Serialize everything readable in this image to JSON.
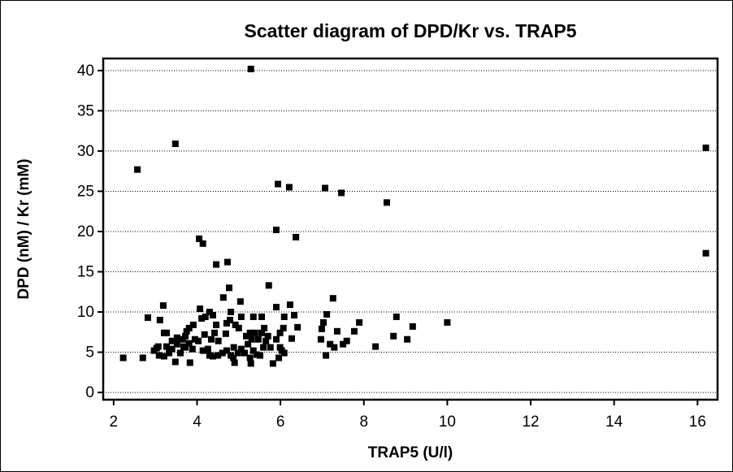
{
  "chart_data": {
    "type": "scatter",
    "title": "Scatter diagram of DPD/Kr vs. TRAP5",
    "x_label": "TRAP5 (U/l)",
    "y_label": "DPD (nM) / Kr (mM)",
    "color": "#000000",
    "grid": true,
    "xlim": [
      1.75,
      16.48
    ],
    "xticks": [
      2,
      4,
      6,
      8,
      10,
      12,
      14,
      16
    ],
    "ylim": [
      -0.9,
      41.5
    ],
    "yticks": [
      0,
      5,
      10,
      15,
      20,
      25,
      30,
      35,
      40
    ],
    "x": [
      2.23,
      2.7,
      2.82,
      2.57,
      3.48,
      5.29,
      16.2,
      16.2,
      5.94,
      6.21,
      7.07,
      7.46,
      8.55,
      5.9,
      6.37,
      4.05,
      4.14,
      4.46,
      4.73,
      5.72,
      4.77,
      4.63,
      6.23,
      7.26,
      3.19,
      4.07,
      4.3,
      5.04,
      5.9,
      6.33,
      7.11,
      8.78,
      9.17,
      10.0,
      7.03,
      6.99,
      6.97,
      7.36,
      7.19,
      7.29,
      7.5,
      7.59,
      7.77,
      7.89,
      8.28,
      8.71,
      9.04,
      7.09,
      6.09,
      6.07,
      5.99,
      5.9,
      5.99,
      6.03,
      6.09,
      5.96,
      5.82,
      6.27,
      6.41,
      5.55,
      5.35,
      5.06,
      4.92,
      5.0,
      4.79,
      4.81,
      4.71,
      4.38,
      4.11,
      4.2,
      3.91,
      3.81,
      3.75,
      3.72,
      3.66,
      3.52,
      3.4,
      3.27,
      3.11,
      3.21,
      3.07,
      3.27,
      3.33,
      3.21,
      3.09,
      2.97,
      3.03,
      3.4,
      3.48,
      3.6,
      3.52,
      3.81,
      3.68,
      3.89,
      4.03,
      4.18,
      4.34,
      4.42,
      4.46,
      4.51,
      4.26,
      4.14,
      4.3,
      4.38,
      4.5,
      4.61,
      4.71,
      4.81,
      4.88,
      4.87,
      4.98,
      5.06,
      5.14,
      5.22,
      5.18,
      5.27,
      5.31,
      5.39,
      5.47,
      5.55,
      5.61,
      5.65,
      5.7,
      5.76,
      5.59,
      5.43,
      5.35,
      5.27,
      5.29,
      5.51,
      4.9,
      3.83,
      3.72,
      3.95,
      4.69
    ],
    "values": [
      4.3,
      4.3,
      9.3,
      27.7,
      30.9,
      40.2,
      30.4,
      17.3,
      25.9,
      25.5,
      25.4,
      24.8,
      23.6,
      20.2,
      19.3,
      19.1,
      18.5,
      15.9,
      16.2,
      13.3,
      13.0,
      11.8,
      10.9,
      11.7,
      10.8,
      10.4,
      10.0,
      11.3,
      10.6,
      9.6,
      9.7,
      9.4,
      8.2,
      8.7,
      8.7,
      7.9,
      6.6,
      7.6,
      6.0,
      5.6,
      6.0,
      6.4,
      7.6,
      8.7,
      5.7,
      7.0,
      6.6,
      4.6,
      9.4,
      8.0,
      7.4,
      6.6,
      5.6,
      5.2,
      4.9,
      4.3,
      3.6,
      6.7,
      8.1,
      9.4,
      9.4,
      9.4,
      8.4,
      8.0,
      9.0,
      10.0,
      8.6,
      9.6,
      9.2,
      9.4,
      8.4,
      8.0,
      7.6,
      7.0,
      6.6,
      6.8,
      6.4,
      7.4,
      9.0,
      7.4,
      5.7,
      5.7,
      4.9,
      4.5,
      4.6,
      5.2,
      5.5,
      5.4,
      3.8,
      4.9,
      6.0,
      6.1,
      5.7,
      5.4,
      6.4,
      7.2,
      6.6,
      7.4,
      8.4,
      6.4,
      5.4,
      5.2,
      4.6,
      4.5,
      4.6,
      4.9,
      5.2,
      4.6,
      5.6,
      4.3,
      4.9,
      5.4,
      4.9,
      6.0,
      7.0,
      7.4,
      6.6,
      7.4,
      6.6,
      7.4,
      8.0,
      6.4,
      7.0,
      5.6,
      5.6,
      4.7,
      5.2,
      4.3,
      3.6,
      4.6,
      3.7,
      3.7,
      5.6,
      6.6,
      7.3
    ]
  }
}
